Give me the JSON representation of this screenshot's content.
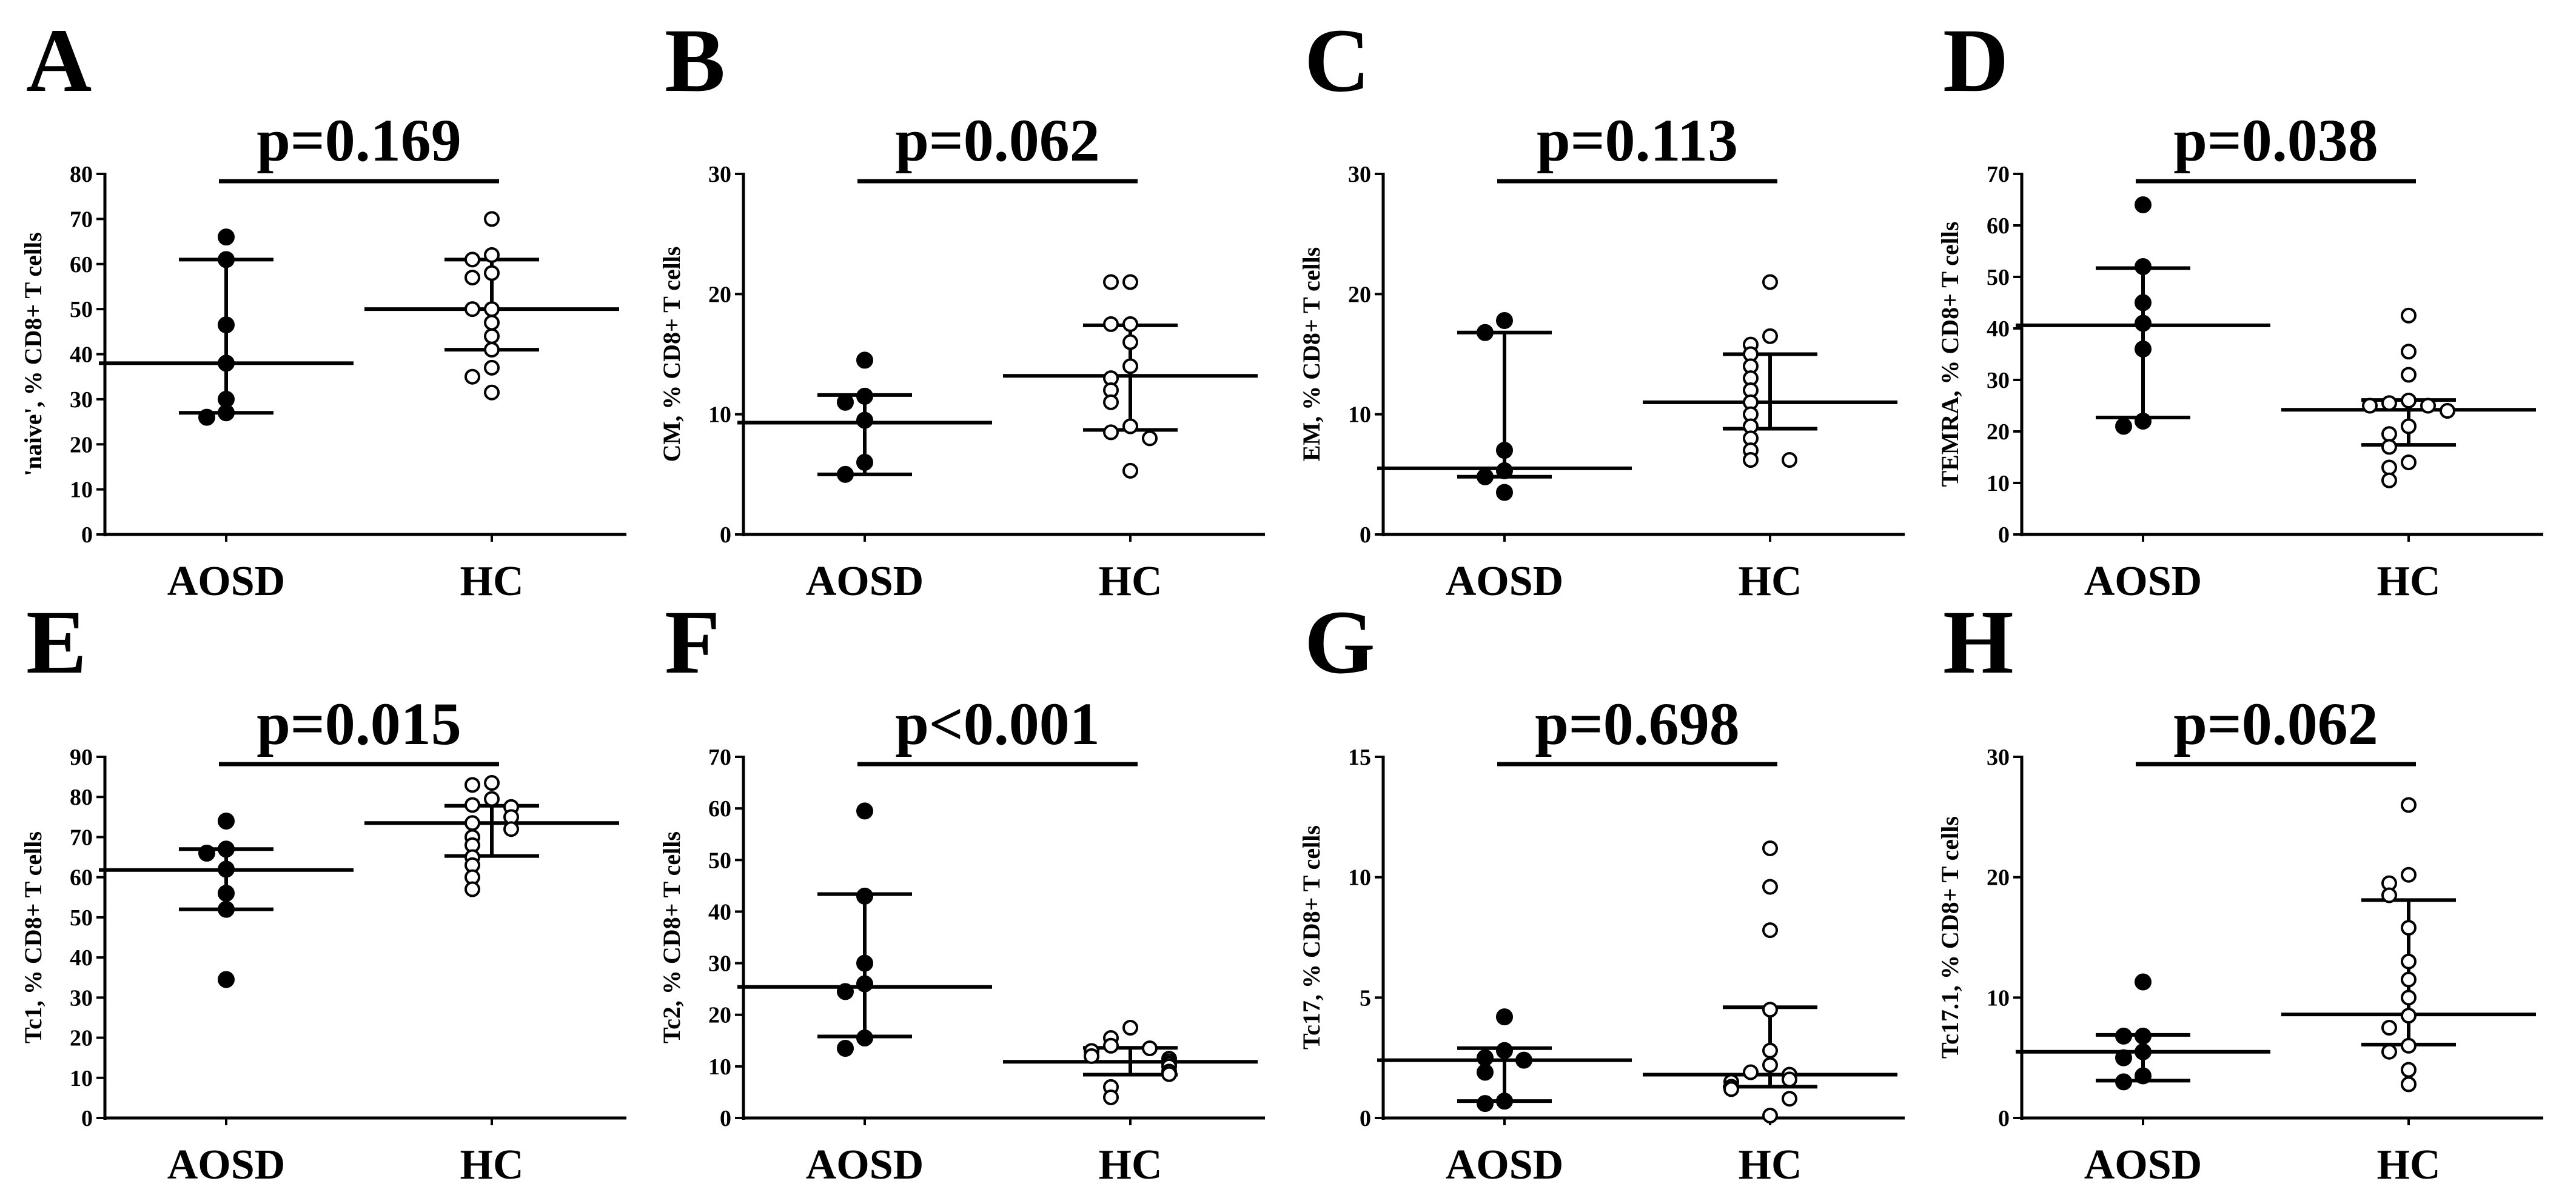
{
  "chart_data": [
    {
      "type": "scatter",
      "panel": "A",
      "title": "p=0.169",
      "ylabel": "'naive', % CD8+ T cells",
      "xlabel": "",
      "ylim": [
        0,
        80
      ],
      "yticks": [
        0,
        10,
        20,
        30,
        40,
        50,
        60,
        70,
        80
      ],
      "categories": [
        "AOSD",
        "HC"
      ],
      "series": [
        {
          "name": "AOSD",
          "filled": true,
          "values": [
            66,
            61,
            46.5,
            38,
            30,
            27,
            26
          ],
          "median": 38,
          "iqr": [
            27,
            61
          ]
        },
        {
          "name": "HC",
          "filled": false,
          "values": [
            70,
            62,
            61,
            58,
            57,
            50,
            50,
            47,
            44,
            41,
            37,
            35,
            31.5
          ],
          "median": 50,
          "iqr": [
            41,
            61
          ]
        }
      ]
    },
    {
      "type": "scatter",
      "panel": "B",
      "title": "p=0.062",
      "ylabel": "CM, % CD8+ T cells",
      "xlabel": "",
      "ylim": [
        0,
        30
      ],
      "yticks": [
        0,
        10,
        20,
        30
      ],
      "categories": [
        "AOSD",
        "HC"
      ],
      "series": [
        {
          "name": "AOSD",
          "filled": true,
          "values": [
            14.5,
            11.5,
            11,
            9.5,
            6,
            5
          ],
          "median": 9.3,
          "iqr": [
            5,
            11.6
          ]
        },
        {
          "name": "HC",
          "filled": false,
          "values": [
            21,
            21,
            17.5,
            17.5,
            16,
            14,
            13,
            12,
            11,
            9,
            8.5,
            8,
            5.3
          ],
          "median": 13.2,
          "iqr": [
            8.7,
            17.4
          ]
        }
      ]
    },
    {
      "type": "scatter",
      "panel": "C",
      "title": "p=0.113",
      "ylabel": "EM, % CD8+ T cells",
      "xlabel": "",
      "ylim": [
        0,
        30
      ],
      "yticks": [
        0,
        10,
        20,
        30
      ],
      "categories": [
        "AOSD",
        "HC"
      ],
      "series": [
        {
          "name": "AOSD",
          "filled": true,
          "values": [
            17.8,
            16.8,
            7,
            5.3,
            4.8,
            3.5
          ],
          "median": 5.5,
          "iqr": [
            4.8,
            16.8
          ]
        },
        {
          "name": "HC",
          "filled": false,
          "values": [
            21,
            16.5,
            15.8,
            15,
            14,
            13,
            12,
            11,
            10,
            9,
            8,
            7,
            6.2,
            6.2
          ],
          "median": 11,
          "iqr": [
            8.8,
            15
          ]
        }
      ]
    },
    {
      "type": "scatter",
      "panel": "D",
      "title": "p=0.038",
      "ylabel": "TEMRA, % CD8+ T cells",
      "xlabel": "",
      "ylim": [
        0,
        70
      ],
      "yticks": [
        0,
        10,
        20,
        30,
        40,
        50,
        60,
        70
      ],
      "categories": [
        "AOSD",
        "HC"
      ],
      "series": [
        {
          "name": "AOSD",
          "filled": true,
          "values": [
            64,
            52,
            45,
            41,
            36,
            22,
            21
          ],
          "median": 40.6,
          "iqr": [
            22.7,
            51.7
          ]
        },
        {
          "name": "HC",
          "filled": false,
          "values": [
            42.5,
            35.5,
            31,
            26,
            25.5,
            25,
            25,
            24,
            21,
            19.5,
            17,
            14,
            13,
            10.5
          ],
          "median": 24.2,
          "iqr": [
            17.4,
            26.1
          ]
        }
      ]
    },
    {
      "type": "scatter",
      "panel": "E",
      "title": "p=0.015",
      "ylabel": "Tc1, % CD8+ T cells",
      "xlabel": "",
      "ylim": [
        0,
        90
      ],
      "yticks": [
        0,
        10,
        20,
        30,
        40,
        50,
        60,
        70,
        80,
        90
      ],
      "categories": [
        "AOSD",
        "HC"
      ],
      "series": [
        {
          "name": "AOSD",
          "filled": true,
          "values": [
            74,
            67,
            66,
            62,
            56,
            52,
            34.5
          ],
          "median": 61.8,
          "iqr": [
            52,
            67
          ]
        },
        {
          "name": "HC",
          "filled": false,
          "values": [
            83.5,
            83,
            79.5,
            78,
            77.5,
            75,
            73.5,
            72,
            70,
            68,
            65,
            63,
            60,
            57
          ],
          "median": 73.5,
          "iqr": [
            65.3,
            77.8
          ]
        }
      ]
    },
    {
      "type": "scatter",
      "panel": "F",
      "title": "p<0.001",
      "ylabel": "Tc2, % CD8+ T cells",
      "xlabel": "",
      "ylim": [
        0,
        70
      ],
      "yticks": [
        0,
        10,
        20,
        30,
        40,
        50,
        60,
        70
      ],
      "categories": [
        "AOSD",
        "HC"
      ],
      "series": [
        {
          "name": "AOSD",
          "filled": true,
          "values": [
            59.5,
            43,
            30,
            26,
            24.5,
            15.5,
            13.5
          ],
          "median": 25.4,
          "iqr": [
            15.8,
            43.4
          ]
        },
        {
          "name": "HC",
          "filled": false,
          "values": [
            17.5,
            15.5,
            14,
            13.5,
            13,
            12,
            11.5,
            11,
            10.5,
            10,
            9,
            8.5,
            6,
            4
          ],
          "median": 10.9,
          "iqr": [
            8.4,
            13.6
          ]
        }
      ]
    },
    {
      "type": "scatter",
      "panel": "G",
      "title": "p=0.698",
      "ylabel": "Tc17, % CD8+ T cells",
      "xlabel": "",
      "ylim": [
        0,
        15
      ],
      "yticks": [
        0,
        5,
        10,
        15
      ],
      "categories": [
        "AOSD",
        "HC"
      ],
      "series": [
        {
          "name": "AOSD",
          "filled": true,
          "values": [
            4.2,
            2.8,
            2.5,
            2.4,
            1.9,
            0.7,
            0.6
          ],
          "median": 2.4,
          "iqr": [
            0.7,
            2.9
          ]
        },
        {
          "name": "HC",
          "filled": false,
          "values": [
            11.2,
            9.6,
            7.8,
            4.5,
            2.8,
            2.2,
            1.9,
            1.8,
            1.6,
            1.5,
            1.3,
            1.2,
            0.8,
            0.1
          ],
          "median": 1.8,
          "iqr": [
            1.3,
            4.6
          ]
        }
      ]
    },
    {
      "type": "scatter",
      "panel": "H",
      "title": "p=0.062",
      "ylabel": "Tc17.1, % CD8+ T cells",
      "xlabel": "",
      "ylim": [
        0,
        30
      ],
      "yticks": [
        0,
        10,
        20,
        30
      ],
      "categories": [
        "AOSD",
        "HC"
      ],
      "series": [
        {
          "name": "AOSD",
          "filled": true,
          "values": [
            11.3,
            6.8,
            6.8,
            5.5,
            5,
            3.5,
            3
          ],
          "median": 5.5,
          "iqr": [
            3.1,
            6.9
          ]
        },
        {
          "name": "HC",
          "filled": false,
          "values": [
            26,
            20.2,
            19.5,
            18.5,
            15.8,
            13,
            11.5,
            10,
            8.5,
            7.5,
            6,
            5.5,
            4,
            2.8
          ],
          "median": 8.6,
          "iqr": [
            6.1,
            18.1
          ]
        }
      ]
    }
  ]
}
